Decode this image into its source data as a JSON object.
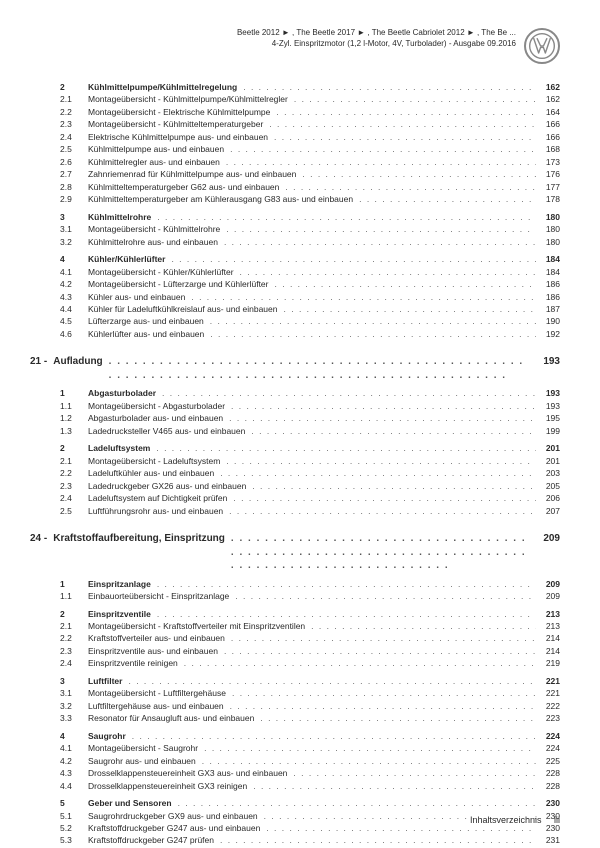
{
  "header": {
    "line1": "Beetle 2012 ► , The Beetle 2017 ► , The Beetle Cabriolet 2012 ► , The Be ...",
    "line2": "4-Zyl. Einspritzmotor (1,2 l-Motor, 4V, Turbolader) - Ausgabe 09.2016",
    "logo_text": "W"
  },
  "footer": {
    "label": "Inhaltsverzeichnis",
    "page": "iii"
  },
  "dots": ". . . . . . . . . . . . . . . . . . . . . . . . . . . . . . . . . . . . . . . . . . . . . . . . . . . . . . . . . . . . . . . . . . . . . . . . . . . . . . . . . . . . . . . . . . . . . . . .",
  "sections": [
    {
      "type": "entries",
      "items": [
        {
          "n": "2",
          "t": "Kühlmittelpumpe/Kühlmittelregelung",
          "p": "162",
          "bold": true,
          "gap": false
        },
        {
          "n": "2.1",
          "t": "Montageübersicht - Kühlmittelpumpe/Kühlmittelregler",
          "p": "162",
          "bold": false,
          "gap": false
        },
        {
          "n": "2.2",
          "t": "Montageübersicht - Elektrische Kühlmittelpumpe",
          "p": "164",
          "bold": false,
          "gap": false
        },
        {
          "n": "2.3",
          "t": "Montageübersicht - Kühlmitteltemperaturgeber",
          "p": "166",
          "bold": false,
          "gap": false
        },
        {
          "n": "2.4",
          "t": "Elektrische Kühlmittelpumpe aus- und einbauen",
          "p": "166",
          "bold": false,
          "gap": false
        },
        {
          "n": "2.5",
          "t": "Kühlmittelpumpe aus- und einbauen",
          "p": "168",
          "bold": false,
          "gap": false
        },
        {
          "n": "2.6",
          "t": "Kühlmittelregler aus- und einbauen",
          "p": "173",
          "bold": false,
          "gap": false
        },
        {
          "n": "2.7",
          "t": "Zahnriemenrad für Kühlmittelpumpe aus- und einbauen",
          "p": "176",
          "bold": false,
          "gap": false
        },
        {
          "n": "2.8",
          "t": "Kühlmitteltemperaturgeber G62 aus- und einbauen",
          "p": "177",
          "bold": false,
          "gap": false
        },
        {
          "n": "2.9",
          "t": "Kühlmitteltemperaturgeber am Kühlerausgang G83 aus- und einbauen",
          "p": "178",
          "bold": false,
          "gap": false
        },
        {
          "n": "3",
          "t": "Kühlmittelrohre",
          "p": "180",
          "bold": true,
          "gap": true
        },
        {
          "n": "3.1",
          "t": "Montageübersicht - Kühlmittelrohre",
          "p": "180",
          "bold": false,
          "gap": false
        },
        {
          "n": "3.2",
          "t": "Kühlmittelrohre aus- und einbauen",
          "p": "180",
          "bold": false,
          "gap": false
        },
        {
          "n": "4",
          "t": "Kühler/Kühlerlüfter",
          "p": "184",
          "bold": true,
          "gap": true
        },
        {
          "n": "4.1",
          "t": "Montageübersicht - Kühler/Kühlerlüfter",
          "p": "184",
          "bold": false,
          "gap": false
        },
        {
          "n": "4.2",
          "t": "Montageübersicht - Lüfterzarge und Kühlerlüfter",
          "p": "186",
          "bold": false,
          "gap": false
        },
        {
          "n": "4.3",
          "t": "Kühler aus- und einbauen",
          "p": "186",
          "bold": false,
          "gap": false
        },
        {
          "n": "4.4",
          "t": "Kühler für Ladeluftkühlkreislauf aus- und einbauen",
          "p": "187",
          "bold": false,
          "gap": false
        },
        {
          "n": "4.5",
          "t": "Lüfterzarge aus- und einbauen",
          "p": "190",
          "bold": false,
          "gap": false
        },
        {
          "n": "4.6",
          "t": "Kühlerlüfter aus- und einbauen",
          "p": "192",
          "bold": false,
          "gap": false
        }
      ]
    },
    {
      "type": "section",
      "id": "21 -",
      "name": "Aufladung",
      "page": "193",
      "items": [
        {
          "n": "1",
          "t": "Abgasturbolader",
          "p": "193",
          "bold": true,
          "gap": false
        },
        {
          "n": "1.1",
          "t": "Montageübersicht - Abgasturbolader",
          "p": "193",
          "bold": false,
          "gap": false
        },
        {
          "n": "1.2",
          "t": "Abgasturbolader aus- und einbauen",
          "p": "195",
          "bold": false,
          "gap": false
        },
        {
          "n": "1.3",
          "t": "Ladedrucksteller V465 aus- und einbauen",
          "p": "199",
          "bold": false,
          "gap": false
        },
        {
          "n": "2",
          "t": "Ladeluftsystem",
          "p": "201",
          "bold": true,
          "gap": true
        },
        {
          "n": "2.1",
          "t": "Montageübersicht - Ladeluftsystem",
          "p": "201",
          "bold": false,
          "gap": false
        },
        {
          "n": "2.2",
          "t": "Ladeluftkühler aus- und einbauen",
          "p": "203",
          "bold": false,
          "gap": false
        },
        {
          "n": "2.3",
          "t": "Ladedruckgeber GX26 aus- und einbauen",
          "p": "205",
          "bold": false,
          "gap": false
        },
        {
          "n": "2.4",
          "t": "Ladeluftsystem auf Dichtigkeit prüfen",
          "p": "206",
          "bold": false,
          "gap": false
        },
        {
          "n": "2.5",
          "t": "Luftführungsrohr aus- und einbauen",
          "p": "207",
          "bold": false,
          "gap": false
        }
      ]
    },
    {
      "type": "section",
      "id": "24 -",
      "name": "Kraftstoffaufbereitung, Einspritzung",
      "page": "209",
      "items": [
        {
          "n": "1",
          "t": "Einspritzanlage",
          "p": "209",
          "bold": true,
          "gap": false
        },
        {
          "n": "1.1",
          "t": "Einbauorteübersicht - Einspritzanlage",
          "p": "209",
          "bold": false,
          "gap": false
        },
        {
          "n": "2",
          "t": "Einspritzventile",
          "p": "213",
          "bold": true,
          "gap": true
        },
        {
          "n": "2.1",
          "t": "Montageübersicht - Kraftstoffverteiler mit Einspritzventilen",
          "p": "213",
          "bold": false,
          "gap": false
        },
        {
          "n": "2.2",
          "t": "Kraftstoffverteiler aus- und einbauen",
          "p": "214",
          "bold": false,
          "gap": false
        },
        {
          "n": "2.3",
          "t": "Einspritzventile aus- und einbauen",
          "p": "214",
          "bold": false,
          "gap": false
        },
        {
          "n": "2.4",
          "t": "Einspritzventile reinigen",
          "p": "219",
          "bold": false,
          "gap": false
        },
        {
          "n": "3",
          "t": "Luftfilter",
          "p": "221",
          "bold": true,
          "gap": true
        },
        {
          "n": "3.1",
          "t": "Montageübersicht - Luftfiltergehäuse",
          "p": "221",
          "bold": false,
          "gap": false
        },
        {
          "n": "3.2",
          "t": "Luftfiltergehäuse aus- und einbauen",
          "p": "222",
          "bold": false,
          "gap": false
        },
        {
          "n": "3.3",
          "t": "Resonator für Ansaugluft aus- und einbauen",
          "p": "223",
          "bold": false,
          "gap": false
        },
        {
          "n": "4",
          "t": "Saugrohr",
          "p": "224",
          "bold": true,
          "gap": true
        },
        {
          "n": "4.1",
          "t": "Montageübersicht - Saugrohr",
          "p": "224",
          "bold": false,
          "gap": false
        },
        {
          "n": "4.2",
          "t": "Saugrohr aus- und einbauen",
          "p": "225",
          "bold": false,
          "gap": false
        },
        {
          "n": "4.3",
          "t": "Drosselklappensteuereinheit GX3 aus- und einbauen",
          "p": "228",
          "bold": false,
          "gap": false
        },
        {
          "n": "4.4",
          "t": "Drosselklappensteuereinheit GX3 reinigen",
          "p": "228",
          "bold": false,
          "gap": false
        },
        {
          "n": "5",
          "t": "Geber und Sensoren",
          "p": "230",
          "bold": true,
          "gap": true
        },
        {
          "n": "5.1",
          "t": "Saugrohrdruckgeber GX9 aus- und einbauen",
          "p": "230",
          "bold": false,
          "gap": false
        },
        {
          "n": "5.2",
          "t": "Kraftstoffdruckgeber G247 aus- und einbauen",
          "p": "230",
          "bold": false,
          "gap": false
        },
        {
          "n": "5.3",
          "t": "Kraftstoffdruckgeber G247 prüfen",
          "p": "231",
          "bold": false,
          "gap": false
        }
      ]
    }
  ]
}
